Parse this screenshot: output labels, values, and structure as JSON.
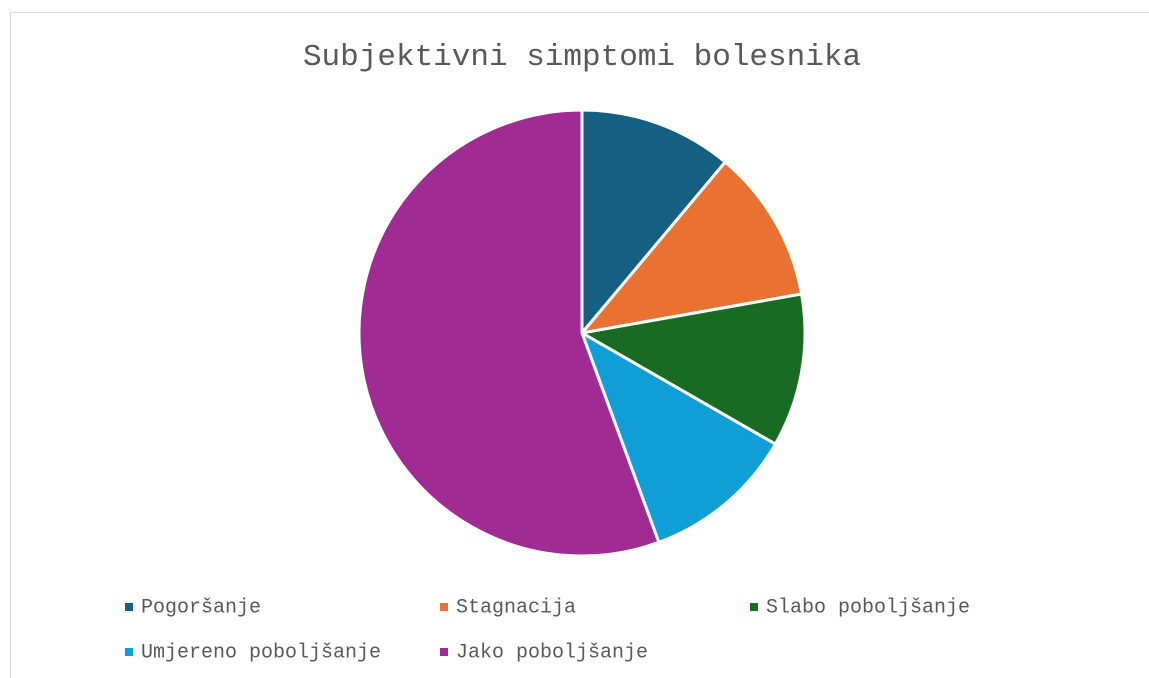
{
  "chart_data": {
    "type": "pie",
    "title": "Subjektivni simptomi bolesnika",
    "categories": [
      "Pogoršanje",
      "Stagnacija",
      "Slabo poboljšanje",
      "Umjereno poboljšanje",
      "Jako poboljšanje"
    ],
    "values": [
      11.1,
      11.1,
      11.1,
      11.1,
      55.6
    ],
    "colors": [
      "#156082",
      "#e97132",
      "#196b24",
      "#0f9ed5",
      "#a02b93"
    ],
    "legend": "bottom"
  }
}
